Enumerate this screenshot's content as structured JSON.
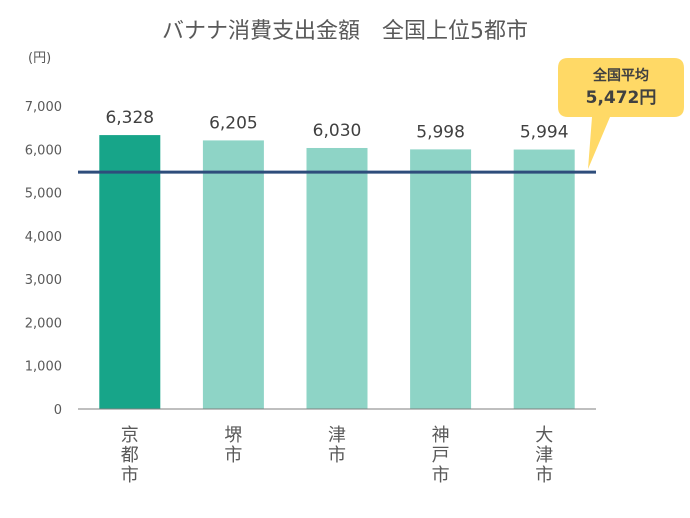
{
  "chart_data": {
    "type": "bar",
    "title": "バナナ消費支出金額　全国上位5都市",
    "unit_label": "(円)",
    "categories": [
      "京都市",
      "堺市",
      "津市",
      "神戸市",
      "大津市"
    ],
    "values": [
      6328,
      6205,
      6030,
      5998,
      5994
    ],
    "value_labels": [
      "6,328",
      "6,205",
      "6,030",
      "5,998",
      "5,994"
    ],
    "ylim": [
      0,
      7000
    ],
    "yticks": [
      0,
      1000,
      2000,
      3000,
      4000,
      5000,
      6000,
      7000
    ],
    "ytick_labels": [
      "0",
      "1,000",
      "2,000",
      "3,000",
      "4,000",
      "5,000",
      "6,000",
      "7,000"
    ],
    "highlight_index": 0,
    "grid": false,
    "reference_line": {
      "value": 5472,
      "label": "全国平均",
      "value_label": "5,472円"
    },
    "colors": {
      "highlight_bar": "#17a589",
      "bar": "#8ed4c6",
      "reference_line": "#2e4d7b",
      "callout": "#ffd966",
      "axis": "#7f7f7f"
    }
  }
}
